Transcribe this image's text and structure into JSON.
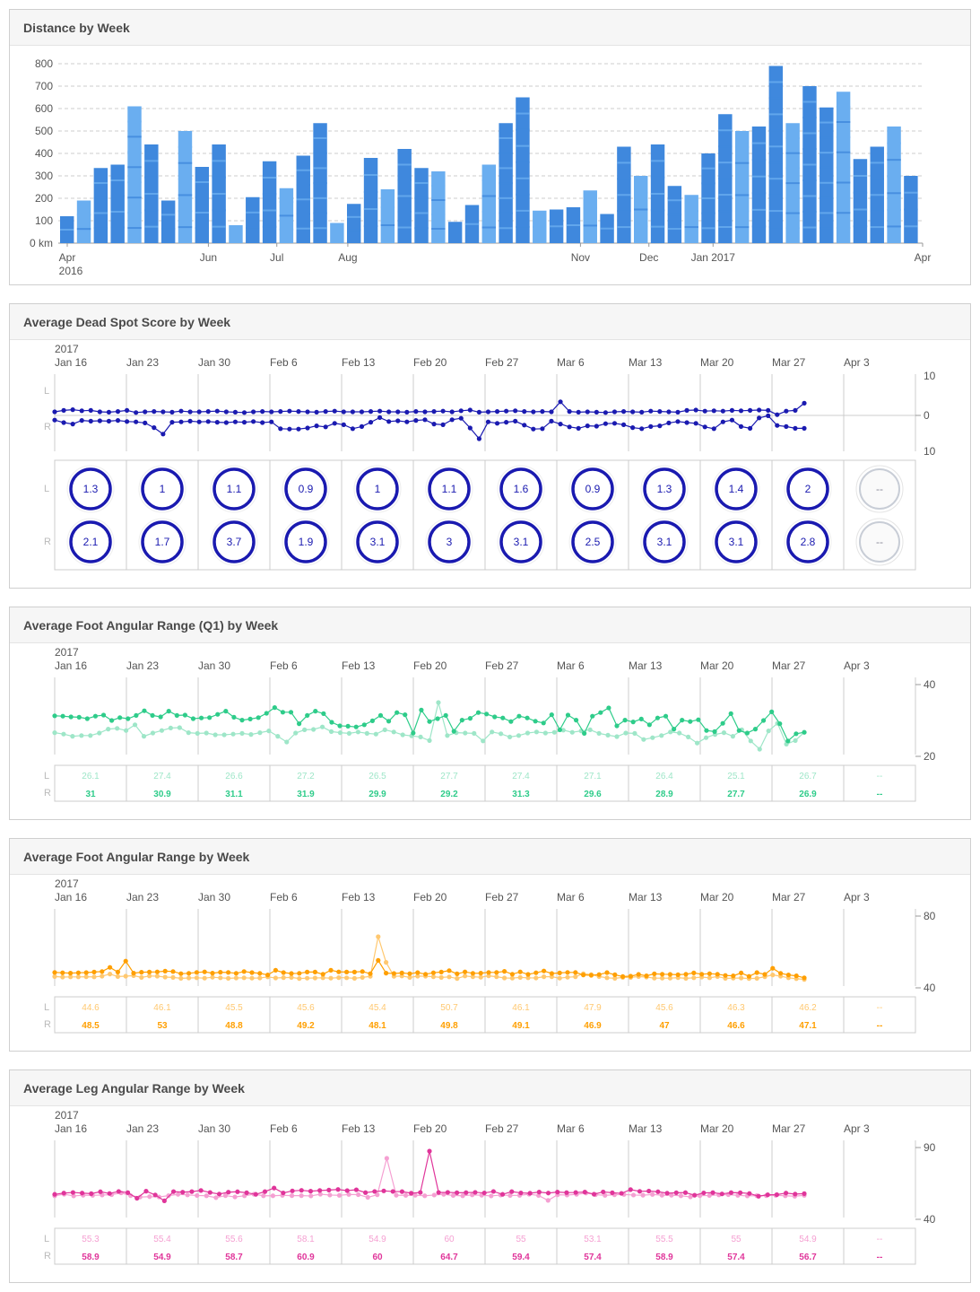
{
  "panels": {
    "distance": {
      "title": "Distance by Week"
    },
    "deadspot": {
      "title": "Average Dead Spot Score by Week"
    },
    "footq1": {
      "title": "Average Foot Angular Range (Q1) by Week"
    },
    "foot": {
      "title": "Average Foot Angular Range by Week"
    },
    "leg": {
      "title": "Average Leg Angular Range by Week"
    }
  },
  "colors": {
    "bar_light": "#6aaef0",
    "bar_dark": "#3f88dd",
    "deadspot": "#1a1ab0",
    "footq1_left": "#9ee6c8",
    "footq1_right": "#2ecc8a",
    "foot_left": "#ffc870",
    "foot_right": "#ff9f00",
    "leg_left": "#f5a0d2",
    "leg_right": "#e0359a",
    "grid": "#dddddd"
  },
  "week_axis": {
    "year": "2017",
    "labels": [
      "Jan 16",
      "Jan 23",
      "Jan 30",
      "Feb 6",
      "Feb 13",
      "Feb 20",
      "Feb 27",
      "Mar 6",
      "Mar 13",
      "Mar 20",
      "Mar 27",
      "Apr 3"
    ],
    "side_left": "L",
    "side_right": "R"
  },
  "chart_data": [
    {
      "type": "bar",
      "title": "Distance by Week",
      "ylabel": "",
      "ylim": [
        0,
        800
      ],
      "yticks": [
        "0 km",
        "100",
        "200",
        "300",
        "400",
        "500",
        "600",
        "700",
        "800"
      ],
      "x_tick_labels": [
        {
          "label": "Apr",
          "sub": "2016"
        },
        {
          "label": "Jun",
          "sub": ""
        },
        {
          "label": "Jul",
          "sub": ""
        },
        {
          "label": "Aug",
          "sub": ""
        },
        {
          "label": "Nov",
          "sub": ""
        },
        {
          "label": "Dec",
          "sub": ""
        },
        {
          "label": "Jan 2017",
          "sub": ""
        },
        {
          "label": "Apr",
          "sub": ""
        }
      ],
      "values": [
        120,
        190,
        335,
        350,
        610,
        440,
        190,
        500,
        340,
        440,
        80,
        205,
        365,
        245,
        390,
        535,
        90,
        175,
        380,
        240,
        420,
        335,
        320,
        95,
        170,
        350,
        535,
        650,
        145,
        150,
        160,
        235,
        130,
        430,
        300,
        440,
        255,
        215,
        400,
        575,
        500,
        520,
        790,
        535,
        700,
        605,
        675,
        375,
        430,
        520,
        300
      ]
    },
    {
      "type": "line",
      "title": "Average Dead Spot Score by Week",
      "ylim": [
        -10,
        10
      ],
      "yticks": [
        "10",
        "0",
        "10"
      ],
      "series": [
        {
          "name": "L",
          "values": [
            1,
            1.4,
            1.6,
            1.3,
            1.4,
            1,
            0.9,
            1.1,
            1.4,
            0.8,
            1,
            1.1,
            1,
            0.9,
            1.2,
            1,
            1,
            1.1,
            1.2,
            1,
            0.9,
            0.8,
            1,
            1.1,
            1,
            1.1,
            1.2,
            1.1,
            1,
            0.9,
            1.1,
            1.2,
            1,
            1,
            1,
            1.1,
            1.2,
            1,
            1,
            0.9,
            1.1,
            1,
            1.1,
            1.2,
            1,
            1.3,
            1.5,
            0.9,
            1,
            1.1,
            1.2,
            1.3,
            1.1,
            1,
            1.1,
            1,
            3.8,
            1.1,
            0.9,
            1,
            0.9,
            0.8,
            1,
            1.1,
            1,
            0.9,
            1.2,
            1.1,
            1,
            0.9,
            1.4,
            1.5,
            1.2,
            1.3,
            1.2,
            1.4,
            1.3,
            1.4,
            1.5,
            1.4,
            0.2,
            1.2,
            1.4,
            3.4
          ]
        },
        {
          "name": "R",
          "values": [
            -1.3,
            -2,
            -2.4,
            -1.4,
            -1.6,
            -1.5,
            -1.6,
            -1.4,
            -1.7,
            -1.8,
            -2.1,
            -3.4,
            -5.2,
            -1.9,
            -1.8,
            -1.6,
            -1.8,
            -1.7,
            -1.9,
            -2,
            -1.8,
            -1.9,
            -1.7,
            -2,
            -1.8,
            -3.7,
            -3.8,
            -3.8,
            -3.5,
            -2.9,
            -3.2,
            -2.2,
            -2.6,
            -3.7,
            -3.1,
            -1.9,
            -0.6,
            -1.7,
            -1.5,
            -1.8,
            -1.4,
            -1.2,
            -2.4,
            -2.6,
            -1.2,
            -0.8,
            -3.5,
            -6.5,
            -1.8,
            -2.2,
            -1.9,
            -1.6,
            -2.7,
            -3.8,
            -3.7,
            -1.6,
            -2.4,
            -3.2,
            -3.6,
            -2.9,
            -3,
            -2.3,
            -2.2,
            -2.6,
            -3.4,
            -3.7,
            -3.1,
            -2.9,
            -2.1,
            -1.7,
            -2,
            -2.2,
            -3.2,
            -3.7,
            -1.8,
            -1.3,
            -3.1,
            -3.6,
            -0.7,
            -0.1,
            -2.8,
            -3.1,
            -3.6,
            -3.6
          ]
        }
      ],
      "dials": {
        "L": [
          "1.3",
          "1",
          "1.1",
          "0.9",
          "1",
          "1.1",
          "1.6",
          "0.9",
          "1.3",
          "1.4",
          "2",
          "--"
        ],
        "R": [
          "2.1",
          "1.7",
          "3.7",
          "1.9",
          "3.1",
          "3",
          "3.1",
          "2.5",
          "3.1",
          "3.1",
          "2.8",
          "--"
        ]
      }
    },
    {
      "type": "line",
      "title": "Average Foot Angular Range (Q1) by Week",
      "ylim": [
        20,
        40
      ],
      "yticks": [
        "40",
        "20"
      ],
      "series": [
        {
          "name": "L",
          "values": [
            26.6,
            26.2,
            25.6,
            25.8,
            25.8,
            26.5,
            27.6,
            27.8,
            27.2,
            28.8,
            25.6,
            26.5,
            27.2,
            27.9,
            28,
            26.6,
            26.4,
            26.5,
            26,
            26,
            26.2,
            26.4,
            26.1,
            26.6,
            27.1,
            25.6,
            24,
            26.5,
            27.4,
            27.5,
            28.2,
            26.9,
            26.6,
            26.4,
            26.8,
            26.4,
            26.2,
            27.4,
            26.8,
            26,
            25.7,
            25.4,
            24.4,
            35,
            25.8,
            26.6,
            26.5,
            26.4,
            24.3,
            26.8,
            26.3,
            25.4,
            25.8,
            26.5,
            26.8,
            26.5,
            26.7,
            27.3,
            26.7,
            27.1,
            27.4,
            26.4,
            25.9,
            25.5,
            26.5,
            26.4,
            24.7,
            25.2,
            25.8,
            26.8,
            26.5,
            25.4,
            23.7,
            25.2,
            26.1,
            26.6,
            25.6,
            27.4,
            24.3,
            22,
            27.1,
            29.2,
            23.4,
            24.4,
            26.7
          ]
        },
        {
          "name": "R",
          "values": [
            31.3,
            31.2,
            31,
            30.9,
            30.5,
            31.2,
            31.5,
            30,
            30.8,
            30.5,
            31.4,
            32.7,
            31.4,
            31,
            32.6,
            31.4,
            31.5,
            30.5,
            30.7,
            30.8,
            31.7,
            32.6,
            30.9,
            30.1,
            30.4,
            30.8,
            32,
            33.6,
            32.3,
            32.3,
            29.1,
            31.4,
            32.6,
            31.9,
            29.5,
            28.5,
            28.4,
            28.2,
            28.8,
            29.9,
            31.4,
            29.8,
            32.2,
            31.6,
            26.5,
            32.9,
            29.7,
            30.5,
            31.4,
            27,
            30.1,
            30.6,
            32.2,
            31.8,
            31,
            30.7,
            29.7,
            31.2,
            30.7,
            29.8,
            29.3,
            31.6,
            27.4,
            31.5,
            30.1,
            26.4,
            31.2,
            32.2,
            33.5,
            28.5,
            30.1,
            29.6,
            30.4,
            28.8,
            30.7,
            31.2,
            27.6,
            30.1,
            29.7,
            30.2,
            27.2,
            26.9,
            29.2,
            31.9,
            27.2,
            26.5,
            27.6,
            30,
            32.4,
            29.1,
            24.3,
            26.3,
            26.7
          ]
        }
      ],
      "weekly_L": [
        "26.1",
        "27.4",
        "26.6",
        "27.2",
        "26.5",
        "27.7",
        "27.4",
        "27.1",
        "26.4",
        "25.1",
        "26.7",
        "--"
      ],
      "weekly_R": [
        "31",
        "30.9",
        "31.1",
        "31.9",
        "29.9",
        "29.2",
        "31.3",
        "29.6",
        "28.9",
        "27.7",
        "26.9",
        "--"
      ]
    },
    {
      "type": "line",
      "title": "Average Foot Angular Range by Week",
      "ylim": [
        40,
        80
      ],
      "yticks": [
        "80",
        "40"
      ],
      "series": [
        {
          "name": "L",
          "values": [
            46.3,
            46,
            46.1,
            46.1,
            46.2,
            46.1,
            46.5,
            47.7,
            46.3,
            46.5,
            46.8,
            45.8,
            46.6,
            46.5,
            46,
            45.8,
            45.3,
            45.5,
            45.6,
            45.4,
            45.9,
            45.6,
            45.3,
            45.5,
            45.6,
            45.4,
            45.5,
            46.1,
            45.5,
            45.7,
            45.8,
            45.2,
            45.4,
            45.5,
            45.6,
            45.4,
            45.7,
            45.6,
            45.3,
            45.8,
            46.4,
            68.5,
            54.2,
            46.4,
            46.6,
            45.8,
            46.5,
            46.5,
            46.2,
            45.8,
            46.1,
            45.2,
            46.6,
            46.2,
            45.9,
            46.7,
            46.2,
            45.5,
            45.4,
            45.8,
            45.6,
            45.5,
            46.2,
            46.2,
            45.4,
            45.9,
            46.2,
            47.9,
            47.4,
            46.3,
            45.6,
            45.3,
            45.8,
            45.8,
            46.3,
            46,
            45.4,
            45.4,
            45.4,
            45.7,
            45.3,
            45.6,
            46,
            45.6,
            46.3,
            45.3,
            45.4,
            45.5,
            45.2,
            45.3,
            46.2,
            47.2,
            46.5,
            45.6,
            45.1,
            44.7
          ]
        },
        {
          "name": "R",
          "values": [
            48.6,
            48.4,
            48.2,
            48.4,
            48.5,
            48.8,
            49.1,
            51.4,
            48.8,
            54.9,
            48.2,
            48.7,
            48.8,
            48.9,
            49.3,
            49.1,
            47.9,
            48.1,
            48.6,
            48.9,
            48.2,
            48.7,
            48.6,
            48.1,
            49.1,
            48.5,
            48.1,
            47.2,
            49.8,
            48.5,
            48,
            48.1,
            48.8,
            48.8,
            47.6,
            49.8,
            48.9,
            48.8,
            48.8,
            49.1,
            47.9,
            55.3,
            48.2,
            48,
            48.3,
            47.9,
            48.5,
            47.6,
            48.4,
            48.8,
            49.6,
            47.8,
            48.9,
            48.1,
            48.2,
            48.6,
            48.6,
            49.2,
            47.6,
            48.9,
            47.5,
            48.4,
            49.4,
            48,
            48.3,
            48.6,
            48.6,
            47.2,
            47,
            47.4,
            48.5,
            47.3,
            46.3,
            46.5,
            47.5,
            46.7,
            47.8,
            47.6,
            47.5,
            47.3,
            47.6,
            48.3,
            47.6,
            47.9,
            47.6,
            46.9,
            46.7,
            48.3,
            46.4,
            48.5,
            47.5,
            50.9,
            48.1,
            47.2,
            46.7,
            45.6
          ]
        }
      ],
      "weekly_L": [
        "44.6",
        "46.1",
        "45.5",
        "45.6",
        "45.4",
        "50.7",
        "46.1",
        "47.9",
        "45.6",
        "46.3",
        "46.2",
        "--"
      ],
      "weekly_R": [
        "48.5",
        "53",
        "48.8",
        "49.2",
        "48.1",
        "49.8",
        "49.1",
        "46.9",
        "47",
        "46.6",
        "47.1",
        "--"
      ]
    },
    {
      "type": "line",
      "title": "Average Leg Angular Range by Week",
      "ylim": [
        40,
        90
      ],
      "yticks": [
        "90",
        "40"
      ],
      "series": [
        {
          "name": "L",
          "values": [
            56.4,
            57.5,
            56.3,
            56.8,
            56.7,
            56.9,
            57.2,
            58.4,
            56.5,
            55.5,
            55.8,
            55.6,
            56.5,
            57.4,
            57,
            56.6,
            56.4,
            55.1,
            56.5,
            55.6,
            56.4,
            57.5,
            56.4,
            56.4,
            56.7,
            56.5,
            56.5,
            56.3,
            57.5,
            56.9,
            56.7,
            57.3,
            57.2,
            55.3,
            57.1,
            82.5,
            56.8,
            56.7,
            56.8,
            56.4,
            56.9,
            57.4,
            56.6,
            56.4,
            57,
            56.8,
            56.3,
            56.9,
            56.6,
            56.7,
            57.5,
            56.6,
            53.2,
            57.1,
            56.9,
            57.4,
            58.3,
            57.2,
            56.7,
            57.1,
            57.3,
            56.9,
            56.8,
            57.3,
            56.8,
            56.8,
            56.4,
            55.6,
            56.5,
            56.6,
            57,
            57.2,
            56.7,
            56.3,
            56.5,
            56.5,
            56.7,
            56.4,
            56.1,
            56.7
          ]
        },
        {
          "name": "R",
          "values": [
            57.4,
            58.3,
            58.7,
            58.3,
            57.9,
            59.2,
            58,
            59.4,
            58.6,
            54.7,
            59.6,
            57,
            52.9,
            59.3,
            58.9,
            59.3,
            60.1,
            58.7,
            57.6,
            58.9,
            59.2,
            58.5,
            57.4,
            59.3,
            61.8,
            58.4,
            59.8,
            60.2,
            59.6,
            60.1,
            60.4,
            60.8,
            60,
            60.6,
            58.6,
            59.4,
            59.8,
            59.4,
            59.3,
            58.2,
            58.7,
            87.5,
            58.7,
            58.8,
            58.5,
            58.6,
            58.8,
            58.4,
            59.4,
            57.4,
            59.3,
            58.4,
            58.2,
            59,
            58.3,
            59,
            58.6,
            58.7,
            59,
            57.5,
            59.1,
            58.5,
            58.1,
            60.7,
            59.5,
            59.7,
            59.2,
            58.2,
            58.5,
            58.6,
            56.8,
            58.4,
            58.6,
            57.7,
            58.6,
            58.5,
            58,
            56.1,
            57.1,
            57.2,
            58.3,
            57.6,
            57.9
          ]
        }
      ],
      "weekly_L": [
        "55.3",
        "55.4",
        "55.6",
        "58.1",
        "54.9",
        "60",
        "55",
        "53.1",
        "55.5",
        "55",
        "54.9",
        "--"
      ],
      "weekly_R": [
        "58.9",
        "54.9",
        "58.7",
        "60.9",
        "60",
        "64.7",
        "59.4",
        "57.4",
        "58.9",
        "57.4",
        "56.7",
        "--"
      ]
    }
  ]
}
